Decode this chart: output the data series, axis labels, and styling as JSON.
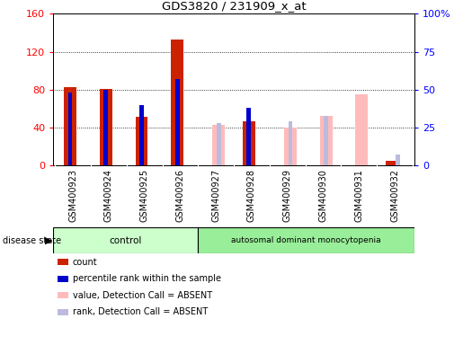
{
  "title": "GDS3820 / 231909_x_at",
  "samples": [
    "GSM400923",
    "GSM400924",
    "GSM400925",
    "GSM400926",
    "GSM400927",
    "GSM400928",
    "GSM400929",
    "GSM400930",
    "GSM400931",
    "GSM400932"
  ],
  "count": [
    83,
    81,
    51,
    133,
    null,
    47,
    null,
    null,
    null,
    5
  ],
  "percentile_rank_pct": [
    48,
    50,
    40,
    57,
    null,
    38,
    null,
    null,
    null,
    null
  ],
  "value_absent": [
    null,
    null,
    null,
    null,
    43,
    null,
    40,
    52,
    75,
    null
  ],
  "rank_absent_pct": [
    null,
    null,
    null,
    null,
    28,
    null,
    29,
    33,
    null,
    7
  ],
  "n_control": 4,
  "n_disease": 6,
  "left_ylim": [
    0,
    160
  ],
  "right_ylim": [
    0,
    100
  ],
  "left_yticks": [
    0,
    40,
    80,
    120,
    160
  ],
  "right_yticks": [
    0,
    25,
    50,
    75,
    100
  ],
  "right_yticklabels": [
    "0",
    "25",
    "50",
    "75",
    "100%"
  ],
  "color_count": "#cc2200",
  "color_percentile": "#0000cc",
  "color_value_absent": "#ffbbbb",
  "color_rank_absent": "#bbbbdd",
  "control_facecolor": "#ccffcc",
  "disease_facecolor": "#99ee99",
  "gray_bg": "#d8d8d8",
  "legend_items": [
    "count",
    "percentile rank within the sample",
    "value, Detection Call = ABSENT",
    "rank, Detection Call = ABSENT"
  ]
}
